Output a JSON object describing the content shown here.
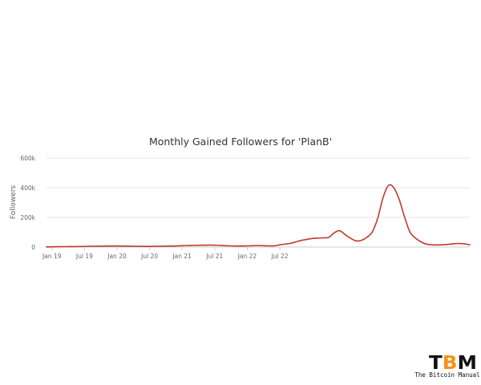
{
  "chart_data": {
    "type": "line",
    "title": "Monthly Gained Followers for 'PlanB'",
    "ylabel": "Followers",
    "xlabel": "",
    "x_start": "Dec 18",
    "x_ticks": [
      "Jan 19",
      "Jul 19",
      "Jan 20",
      "Jul 20",
      "Jan 21",
      "Jul 21",
      "Jan 22",
      "Jul 22"
    ],
    "y_ticks": [
      "0",
      "200k",
      "400k",
      "600k"
    ],
    "ylim": [
      0,
      600000
    ],
    "grid": true,
    "color": "#c0392b",
    "series": [
      {
        "values": [
          1000,
          1500,
          2000,
          2500,
          3000,
          3500,
          4000,
          4500,
          5000,
          5500,
          6000,
          6500,
          7000,
          7000,
          6500,
          6000,
          5500,
          5000,
          4500,
          4500,
          5000,
          5500,
          6000,
          6500,
          7500,
          9000,
          10000,
          11000,
          12000,
          12500,
          13000,
          12500,
          11000,
          9000,
          8000,
          7000,
          7000,
          8000,
          9000,
          9500,
          9000,
          8000,
          8000,
          15000,
          20000,
          25000,
          35000,
          45000,
          52000,
          58000,
          60000,
          62000,
          65000,
          95000,
          110000,
          85000,
          60000,
          42000,
          45000,
          65000,
          100000,
          190000,
          330000,
          415000,
          400000,
          320000,
          200000,
          100000,
          60000,
          35000,
          20000,
          15000,
          14000,
          15000,
          18000,
          22000,
          24000,
          22000,
          15000
        ]
      }
    ]
  },
  "brand": {
    "logo_text": "TBM",
    "tagline": "The Bitcoin Manual"
  }
}
